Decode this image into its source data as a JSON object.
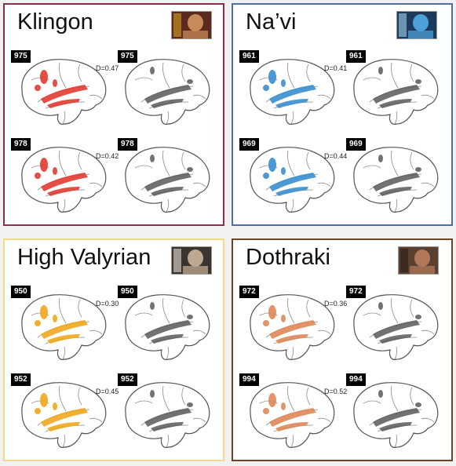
{
  "panels": [
    {
      "id": "klingon",
      "title": "Klingon",
      "border": "#8c2d4a",
      "activation": "#e23b30",
      "thumb": {
        "bg": "#5a2a1e",
        "fg": "#c98a5a",
        "accent": "#d4a020"
      },
      "rows": [
        {
          "left_label": "975",
          "right_label": "975",
          "d": "D=0.47"
        },
        {
          "left_label": "978",
          "right_label": "978",
          "d": "D=0.42"
        }
      ]
    },
    {
      "id": "navi",
      "title": "Na’vi",
      "border": "#4d6fa3",
      "activation": "#3a8fd0",
      "thumb": {
        "bg": "#1e3a5a",
        "fg": "#4ea0d8",
        "accent": "#9fd0ef"
      },
      "rows": [
        {
          "left_label": "961",
          "right_label": "961",
          "d": "D=0.41"
        },
        {
          "left_label": "969",
          "right_label": "969",
          "d": "D=0.44"
        }
      ]
    },
    {
      "id": "high-valyrian",
      "title": "High Valyrian",
      "border": "#f2d88c",
      "activation": "#f0a81c",
      "thumb": {
        "bg": "#3a3430",
        "fg": "#c0a890",
        "accent": "#e8e0d0"
      },
      "rows": [
        {
          "left_label": "950",
          "right_label": "950",
          "d": "D=0.30"
        },
        {
          "left_label": "952",
          "right_label": "952",
          "d": "D=0.45"
        }
      ]
    },
    {
      "id": "dothraki",
      "title": "Dothraki",
      "border": "#6b4428",
      "activation": "#e08858",
      "thumb": {
        "bg": "#5a4030",
        "fg": "#b07858",
        "accent": "#2a1c12"
      },
      "rows": [
        {
          "left_label": "972",
          "right_label": "972",
          "d": "D=0.36"
        },
        {
          "left_label": "994",
          "right_label": "994",
          "d": "D=0.52"
        }
      ]
    }
  ],
  "colors": {
    "brain_outline": "#555555",
    "right_activation": "#5a5a5a"
  }
}
